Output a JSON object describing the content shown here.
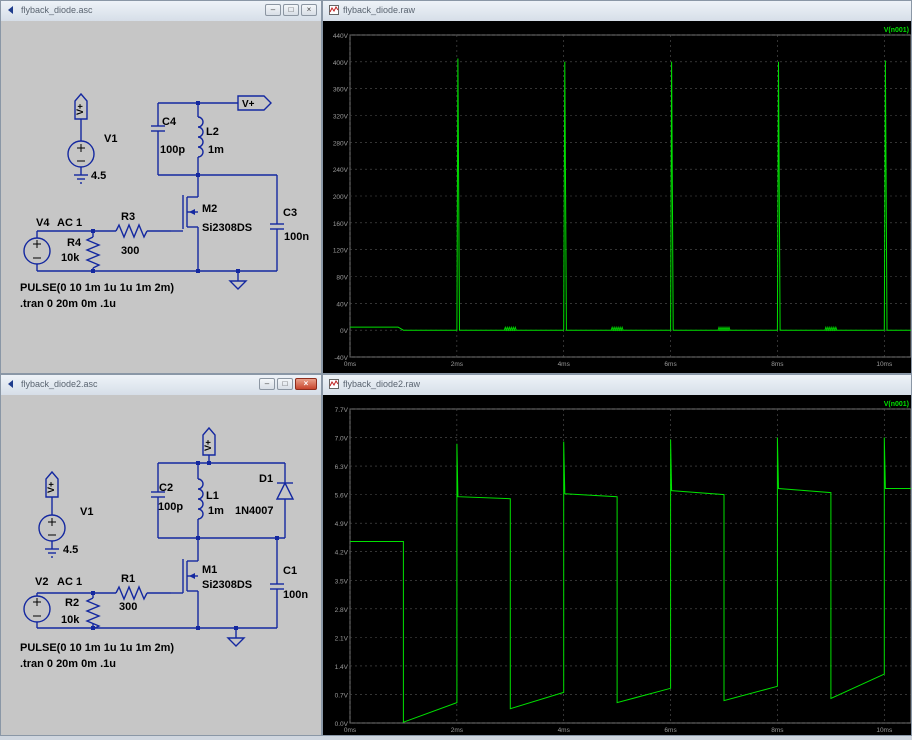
{
  "top_schematic": {
    "title": "flyback_diode.asc",
    "V1": {
      "name": "V1",
      "value": "4.5",
      "flag": "V+"
    },
    "V4": {
      "name": "V4",
      "ac": "AC 1"
    },
    "R4": {
      "name": "R4",
      "value": "10k"
    },
    "R3": {
      "name": "R3",
      "value": "300"
    },
    "C4": {
      "name": "C4",
      "value": "100p"
    },
    "L2": {
      "name": "L2",
      "value": "1m"
    },
    "M2": {
      "name": "M2",
      "model": "Si2308DS"
    },
    "C3": {
      "name": "C3",
      "value": "100n"
    },
    "vplus_flag": "V+",
    "pulse": "PULSE(0 10 1m 1u 1u 1m 2m)",
    "tran": ".tran 0 20m 0m .1u"
  },
  "top_plot": {
    "title": "flyback_diode.raw",
    "trace_label": "V(n001)",
    "trace_color": "#00e000",
    "y_ticks": [
      "440V",
      "400V",
      "360V",
      "320V",
      "280V",
      "240V",
      "200V",
      "160V",
      "120V",
      "80V",
      "40V",
      "0V",
      "-40V"
    ],
    "x_ticks": [
      "0ms",
      "2ms",
      "4ms",
      "6ms",
      "8ms",
      "10ms"
    ]
  },
  "bottom_schematic": {
    "title": "flyback_diode2.asc",
    "V1": {
      "name": "V1",
      "value": "4.5",
      "flag": "V+"
    },
    "V2": {
      "name": "V2",
      "ac": "AC 1"
    },
    "R2": {
      "name": "R2",
      "value": "10k"
    },
    "R1": {
      "name": "R1",
      "value": "300"
    },
    "C2": {
      "name": "C2",
      "value": "100p"
    },
    "L1": {
      "name": "L1",
      "value": "1m"
    },
    "D1": {
      "name": "D1",
      "model": "1N4007"
    },
    "M1": {
      "name": "M1",
      "model": "Si2308DS"
    },
    "C1": {
      "name": "C1",
      "value": "100n"
    },
    "vplus_flag": "V+",
    "pulse": "PULSE(0 10 1m 1u 1u 1m 2m)",
    "tran": ".tran 0 20m 0m .1u"
  },
  "bottom_plot": {
    "title": "flyback_diode2.raw",
    "trace_label": "V(n001)",
    "trace_color": "#00e000",
    "y_ticks": [
      "7.7V",
      "7.0V",
      "6.3V",
      "5.6V",
      "4.9V",
      "4.2V",
      "3.5V",
      "2.8V",
      "2.1V",
      "1.4V",
      "0.7V",
      "0.0V"
    ],
    "x_ticks": [
      "0ms",
      "2ms",
      "4ms",
      "6ms",
      "8ms",
      "10ms"
    ]
  },
  "chart_data": [
    {
      "type": "line",
      "title": "flyback_diode.raw",
      "series": [
        {
          "name": "V(n001)",
          "x_ms": [
            0,
            0.9,
            1.0,
            1.01,
            2.0,
            2.02,
            2.05,
            3.0,
            3.02,
            3.05,
            4.0,
            4.02,
            4.05,
            5.0,
            5.02,
            5.05,
            6.0,
            6.02,
            6.05,
            7.0,
            7.02,
            7.05,
            8.0,
            8.02,
            8.05,
            9.0,
            9.02,
            9.05,
            10.0,
            10.02,
            10.05,
            10.5
          ],
          "values": [
            4.5,
            4.5,
            0,
            0,
            0,
            405,
            0,
            0,
            0,
            0,
            0,
            400,
            0,
            0,
            0,
            0,
            0,
            400,
            0,
            0,
            0,
            0,
            0,
            400,
            0,
            0,
            0,
            0,
            0,
            402,
            0,
            0
          ]
        }
      ],
      "xlim": [
        0,
        10.5
      ],
      "ylim": [
        -40,
        440
      ]
    },
    {
      "type": "line",
      "title": "flyback_diode2.raw",
      "series": [
        {
          "name": "V(n001)",
          "x_ms": [
            0,
            1.0,
            1.0,
            2.0,
            2.0,
            2.02,
            3.0,
            3.0,
            4.0,
            4.0,
            4.02,
            5.0,
            5.0,
            6.0,
            6.0,
            6.02,
            7.0,
            7.0,
            8.0,
            8.0,
            8.02,
            9.0,
            9.0,
            10.0,
            10.0,
            10.02,
            10.5
          ],
          "values": [
            4.45,
            4.45,
            0.02,
            0.5,
            6.85,
            5.55,
            5.5,
            0.35,
            0.75,
            6.9,
            5.62,
            5.55,
            0.5,
            0.85,
            6.95,
            5.7,
            5.6,
            0.55,
            0.9,
            7.0,
            5.75,
            5.65,
            0.6,
            1.2,
            7.0,
            5.75,
            5.75
          ]
        }
      ],
      "xlim": [
        0,
        10.5
      ],
      "ylim": [
        0,
        7.7
      ]
    }
  ]
}
